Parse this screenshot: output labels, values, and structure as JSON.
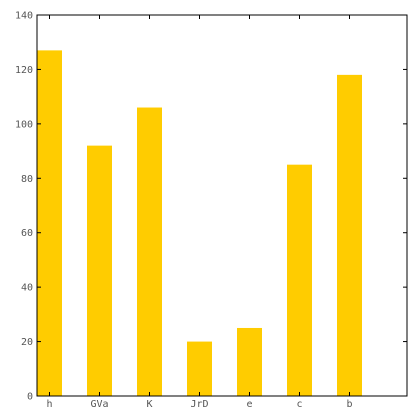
{
  "chart_data": {
    "type": "bar",
    "categories": [
      "h",
      "GVa",
      "K",
      "JrD",
      "e",
      "c",
      "b"
    ],
    "values": [
      127,
      92,
      106,
      20,
      25,
      85,
      118
    ],
    "ylim": [
      0,
      140
    ],
    "yticks": [
      0,
      20,
      40,
      60,
      80,
      100,
      120,
      140
    ],
    "grid": false,
    "bar_color": "#ffcc00",
    "title": "",
    "xlabel": "",
    "ylabel": ""
  }
}
